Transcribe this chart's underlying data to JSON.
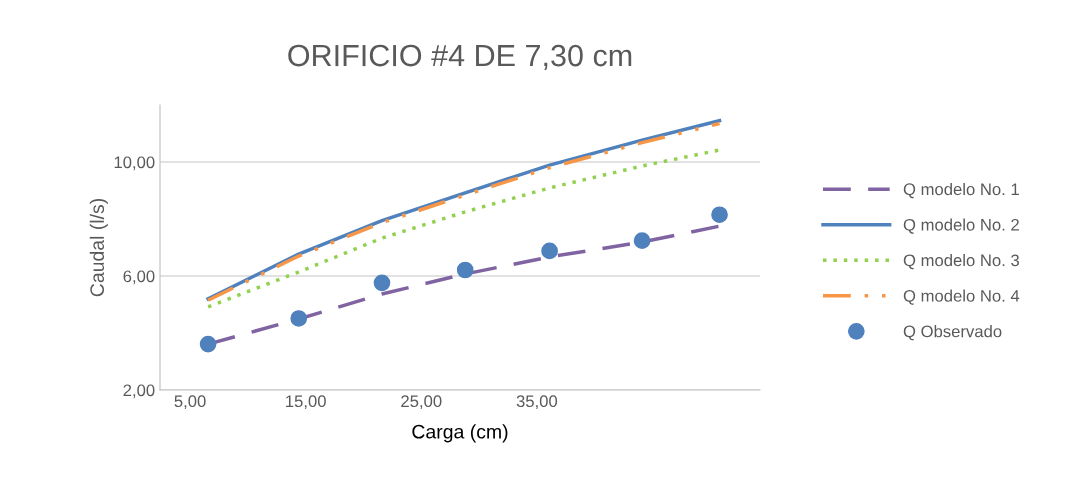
{
  "chart_data": {
    "type": "line",
    "title": "ORIFICIO #4 DE 7,30 cm",
    "xlabel": "Carga (cm)",
    "ylabel": "Caudal (l/s)",
    "x": [
      6.56,
      14.4,
      21.6,
      28.8,
      36.1,
      44.1,
      50.8
    ],
    "series": [
      {
        "name": "Q modelo No. 1",
        "color": "#8064a2",
        "line_style": "dashed",
        "values": [
          3.61,
          4.49,
          5.37,
          6.07,
          6.67,
          7.19,
          7.75
        ]
      },
      {
        "name": "Q modelo No. 2",
        "color": "#4f81bd",
        "line_style": "solid",
        "values": [
          5.2,
          6.77,
          7.94,
          8.92,
          9.89,
          10.77,
          11.45
        ]
      },
      {
        "name": "Q modelo No. 3",
        "color": "#92d050",
        "line_style": "dotted",
        "values": [
          4.92,
          6.14,
          7.33,
          8.25,
          9.09,
          9.86,
          10.42
        ]
      },
      {
        "name": "Q modelo No. 4",
        "color": "#f79646",
        "line_style": "dashdot",
        "values": [
          5.15,
          6.7,
          7.87,
          8.84,
          9.8,
          10.68,
          11.35
        ]
      },
      {
        "name": "Q Observado",
        "type": "scatter",
        "marker": "circle",
        "color": "#4f81bd",
        "values": [
          3.61,
          4.51,
          5.76,
          6.21,
          6.88,
          7.24,
          8.15
        ]
      }
    ],
    "xlim": [
      2.4,
      54.3
    ],
    "xticks": [
      {
        "value": 5,
        "label": "5,00"
      },
      {
        "value": 15,
        "label": "15,00"
      },
      {
        "value": 25,
        "label": "25,00"
      },
      {
        "value": 35,
        "label": "35,00"
      }
    ],
    "ylim": [
      2,
      12
    ],
    "yticks": [
      {
        "value": 2,
        "label": "2,00"
      },
      {
        "value": 6,
        "label": "6,00"
      },
      {
        "value": 10,
        "label": "10,00"
      }
    ],
    "grid": "y",
    "legend": "right"
  }
}
